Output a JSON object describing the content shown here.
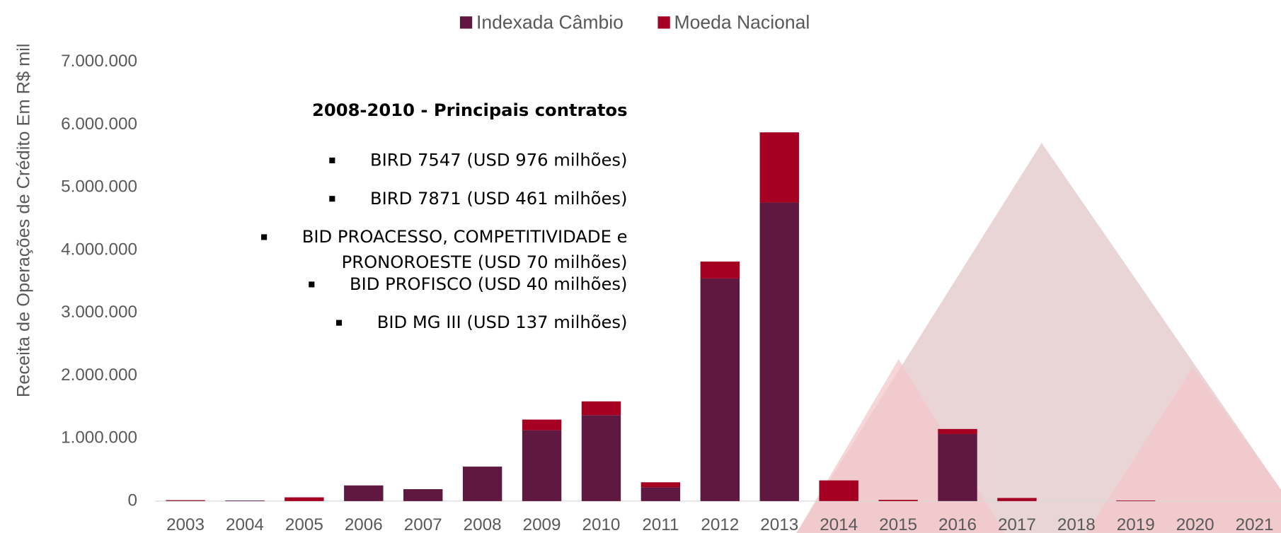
{
  "chart_data": {
    "type": "stacked_bar",
    "y_label": "Receita de Operações de Crédito Em R$ mil",
    "categories": [
      "2003",
      "2004",
      "2005",
      "2006",
      "2007",
      "2008",
      "2009",
      "2010",
      "2011",
      "2012",
      "2013",
      "2014",
      "2015",
      "2016",
      "2017",
      "2018",
      "2019",
      "2020",
      "2021"
    ],
    "series": [
      {
        "name": "Indexada Câmbio",
        "color": "#5f1840",
        "values": [
          5000,
          10000,
          0,
          250000,
          190000,
          550000,
          1130000,
          1370000,
          220000,
          3550000,
          4760000,
          0,
          0,
          1070000,
          0,
          0,
          0,
          0,
          0
        ]
      },
      {
        "name": "Moeda Nacional",
        "color": "#a50021",
        "values": [
          10000,
          0,
          60000,
          0,
          0,
          0,
          170000,
          220000,
          80000,
          270000,
          1120000,
          330000,
          20000,
          80000,
          50000,
          0,
          10000,
          0,
          0
        ]
      }
    ],
    "ylim": [
      0,
      7000000
    ],
    "yticks": [
      0,
      {
        "value": 1000000,
        "label": "1.000.000"
      },
      {
        "value": 2000000,
        "label": "2.000.000"
      },
      {
        "value": 3000000,
        "label": "3.000.000"
      },
      {
        "value": 4000000,
        "label": "4.000.000"
      },
      {
        "value": 5000000,
        "label": "5.000.000"
      },
      {
        "value": 6000000,
        "label": "6.000.000"
      },
      {
        "value": 7000000,
        "label": "7.000.000"
      }
    ],
    "legend": "top",
    "annotation": {
      "title": "2008-2010 - Principais contratos",
      "items": [
        [
          "BIRD 7547 (USD 976 milhões)"
        ],
        [
          "BIRD 7871 (USD 461 milhões)"
        ],
        [
          "BID PROACESSO, COMPETITIVIDADE e",
          "PRONOROESTE (USD 70 milhões)"
        ],
        [
          "BID PROFISCO (USD 40 milhões)"
        ],
        [
          "BID MG III (USD 137 milhões)"
        ]
      ]
    }
  }
}
